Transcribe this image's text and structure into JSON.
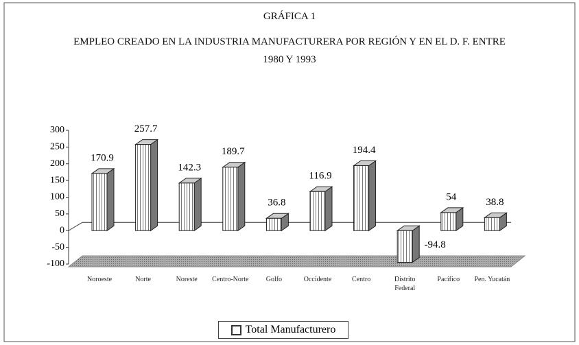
{
  "chart_data": {
    "type": "bar3d",
    "supertitle": "GRÁFICA 1",
    "title": "EMPLEO CREADO EN LA INDUSTRIA MANUFACTURERA POR REGIÓN Y EN EL D. F. ENTRE 1980 Y 1993",
    "categories": [
      "Noroeste",
      "Norte",
      "Noreste",
      "Centro-Norte",
      "Golfo",
      "Occidente",
      "Centro",
      "Distrito Federal",
      "Pacífico",
      "Pen. Yucatán"
    ],
    "series": [
      {
        "name": "Total Manufacturero",
        "color": "#ffffff",
        "values": [
          170.9,
          257.7,
          142.3,
          189.7,
          36.8,
          116.9,
          194.4,
          -94.8,
          54,
          38.8
        ]
      }
    ],
    "ylim": [
      -100,
      300
    ],
    "yticks": [
      -100,
      -50,
      0,
      50,
      100,
      150,
      200,
      250,
      300
    ]
  }
}
